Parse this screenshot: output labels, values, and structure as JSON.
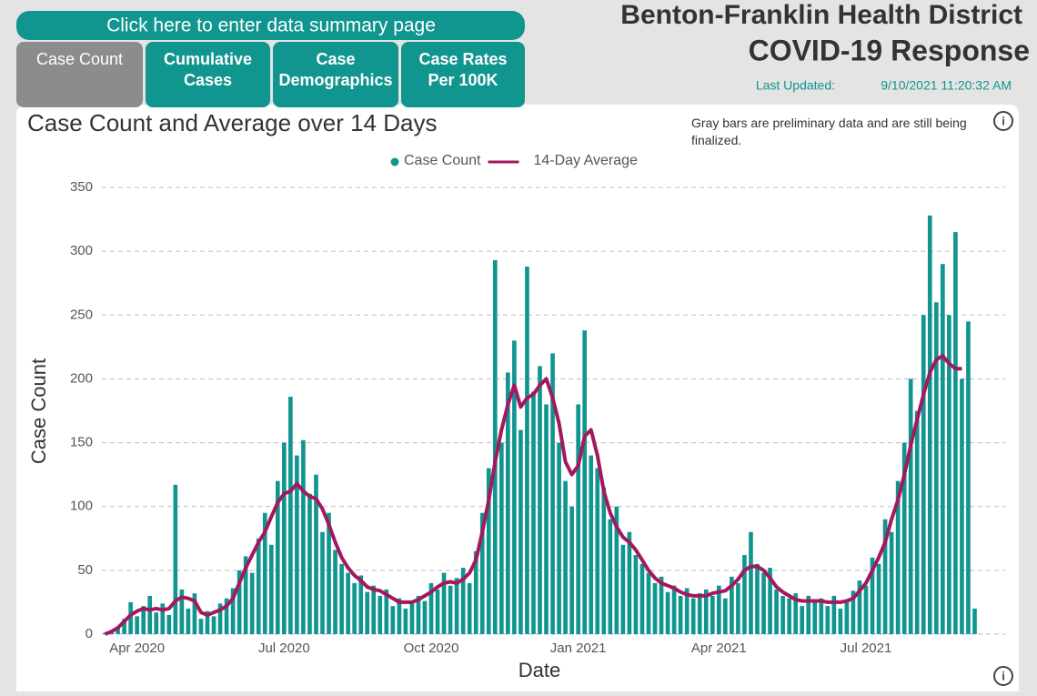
{
  "ui": {
    "summary_button": "Click here to enter data summary page",
    "tabs": [
      "Case Count",
      "Cumulative Cases",
      "Case Demographics",
      "Case Rates Per 100K"
    ],
    "header_title_1": "Benton-Franklin Health District",
    "header_title_2": "COVID-19 Response",
    "last_updated_label": "Last Updated:",
    "last_updated_value": "9/10/2021 11:20:32 AM"
  },
  "chart_data": {
    "type": "bar_line",
    "title": "Case Count and Average over 14 Days",
    "annotation": "Gray bars are preliminary data and are still being finalized.",
    "x_label": "Date",
    "y_label": "Case Count",
    "categories": [
      null,
      null,
      null,
      null,
      null,
      "Apr 2020",
      null,
      null,
      null,
      null,
      null,
      null,
      null,
      null,
      null,
      null,
      null,
      null,
      null,
      null,
      null,
      null,
      null,
      null,
      null,
      null,
      null,
      null,
      "Jul 2020",
      null,
      null,
      null,
      null,
      null,
      null,
      null,
      null,
      null,
      null,
      null,
      null,
      null,
      null,
      null,
      null,
      null,
      null,
      null,
      null,
      null,
      null,
      "Oct 2020",
      null,
      null,
      null,
      null,
      null,
      null,
      null,
      null,
      null,
      null,
      null,
      null,
      null,
      null,
      null,
      null,
      null,
      null,
      null,
      null,
      null,
      null,
      "Jan 2021",
      null,
      null,
      null,
      null,
      null,
      null,
      null,
      null,
      null,
      null,
      null,
      null,
      null,
      null,
      null,
      null,
      null,
      null,
      null,
      null,
      null,
      "Apr 2021",
      null,
      null,
      null,
      null,
      null,
      null,
      null,
      null,
      null,
      null,
      null,
      null,
      null,
      null,
      null,
      null,
      null,
      null,
      null,
      null,
      null,
      null,
      "Jul 2021",
      null,
      null,
      null,
      null,
      null,
      null,
      null,
      null,
      null,
      null,
      null,
      null,
      null,
      null,
      null,
      null,
      null
    ],
    "series": [
      {
        "name": "Case Count",
        "type": "bar",
        "color": "#10958f",
        "values": [
          1,
          3,
          6,
          12,
          25,
          14,
          22,
          30,
          17,
          24,
          15,
          117,
          35,
          20,
          32,
          12,
          18,
          14,
          24,
          28,
          36,
          50,
          61,
          48,
          75,
          95,
          70,
          120,
          150,
          186,
          140,
          152,
          110,
          125,
          80,
          95,
          66,
          55,
          48,
          40,
          46,
          33,
          38,
          30,
          35,
          22,
          28,
          20,
          24,
          30,
          26,
          40,
          35,
          48,
          38,
          44,
          52,
          40,
          65,
          95,
          130,
          293,
          150,
          205,
          230,
          160,
          288,
          190,
          210,
          180,
          220,
          150,
          120,
          100,
          180,
          238,
          140,
          130,
          115,
          90,
          100,
          70,
          80,
          62,
          55,
          48,
          40,
          45,
          33,
          38,
          30,
          36,
          28,
          32,
          35,
          30,
          38,
          28,
          45,
          40,
          62,
          80,
          55,
          48,
          52,
          35,
          30,
          28,
          32,
          22,
          30,
          25,
          28,
          22,
          30,
          20,
          26,
          34,
          42,
          38,
          60,
          55,
          90,
          80,
          120,
          150,
          200,
          175,
          250,
          328,
          260,
          290,
          250,
          315,
          200,
          245,
          20
        ]
      },
      {
        "name": "14-Day Average",
        "type": "line",
        "color": "#a3185e",
        "values": [
          0,
          2,
          5,
          10,
          15,
          18,
          20,
          19,
          20,
          19,
          20,
          26,
          29,
          28,
          26,
          17,
          15,
          17,
          19,
          22,
          28,
          40,
          52,
          62,
          72,
          80,
          92,
          103,
          110,
          112,
          118,
          112,
          108,
          106,
          98,
          86,
          72,
          60,
          52,
          46,
          42,
          37,
          35,
          34,
          31,
          28,
          25,
          25,
          25,
          27,
          30,
          33,
          37,
          40,
          41,
          40,
          43,
          48,
          58,
          80,
          105,
          135,
          160,
          180,
          195,
          178,
          185,
          188,
          195,
          200,
          185,
          165,
          135,
          125,
          132,
          155,
          160,
          140,
          112,
          95,
          84,
          76,
          72,
          66,
          58,
          50,
          44,
          40,
          38,
          36,
          33,
          31,
          30,
          30,
          30,
          32,
          33,
          34,
          38,
          43,
          50,
          53,
          53,
          50,
          44,
          37,
          33,
          30,
          27,
          26,
          26,
          26,
          26,
          25,
          25,
          25,
          26,
          28,
          34,
          40,
          50,
          60,
          72,
          90,
          105,
          125,
          148,
          168,
          188,
          205,
          215,
          218,
          212,
          208,
          208,
          null,
          null
        ]
      }
    ],
    "ylim": [
      0,
      350
    ],
    "yticks": [
      0,
      50,
      100,
      150,
      200,
      250,
      300,
      350
    ],
    "grid": true
  }
}
